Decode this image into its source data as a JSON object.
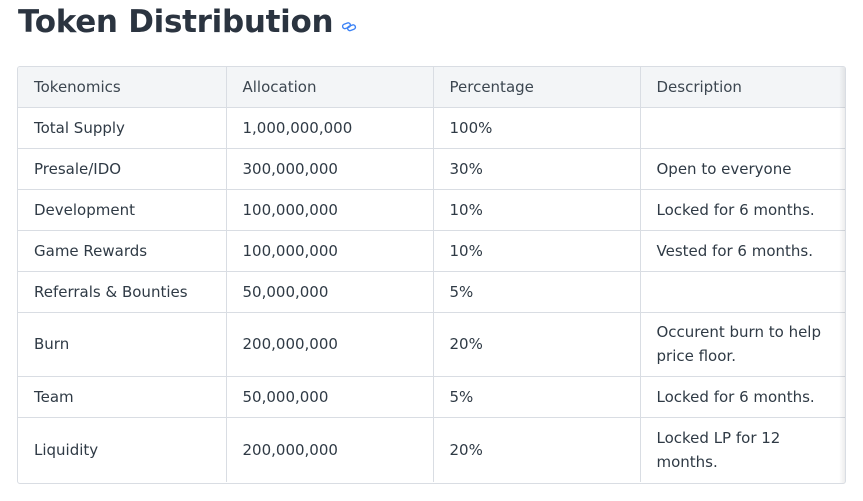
{
  "heading": {
    "title": "Token Distribution",
    "anchor_icon": "link-icon",
    "accent_color": "#3b82f6"
  },
  "table": {
    "headers": [
      "Tokenomics",
      "Allocation",
      "Percentage",
      "Description"
    ],
    "rows": [
      {
        "tokenomics": "Total Supply",
        "allocation": "1,000,000,000",
        "percentage": "100%",
        "description": ""
      },
      {
        "tokenomics": "Presale/IDO",
        "allocation": "300,000,000",
        "percentage": "30%",
        "description": "Open to everyone"
      },
      {
        "tokenomics": "Development",
        "allocation": "100,000,000",
        "percentage": "10%",
        "description": "Locked for 6 months."
      },
      {
        "tokenomics": "Game Rewards",
        "allocation": "100,000,000",
        "percentage": "10%",
        "description": "Vested for 6 months."
      },
      {
        "tokenomics": "Referrals & Bounties",
        "allocation": "50,000,000",
        "percentage": "5%",
        "description": ""
      },
      {
        "tokenomics": "Burn",
        "allocation": "200,000,000",
        "percentage": "20%",
        "description": "Occurent burn to help price floor."
      },
      {
        "tokenomics": "Team",
        "allocation": "50,000,000",
        "percentage": "5%",
        "description": "Locked for 6 months."
      },
      {
        "tokenomics": "Liquidity",
        "allocation": "200,000,000",
        "percentage": "20%",
        "description": "Locked LP for 12 months."
      }
    ]
  }
}
